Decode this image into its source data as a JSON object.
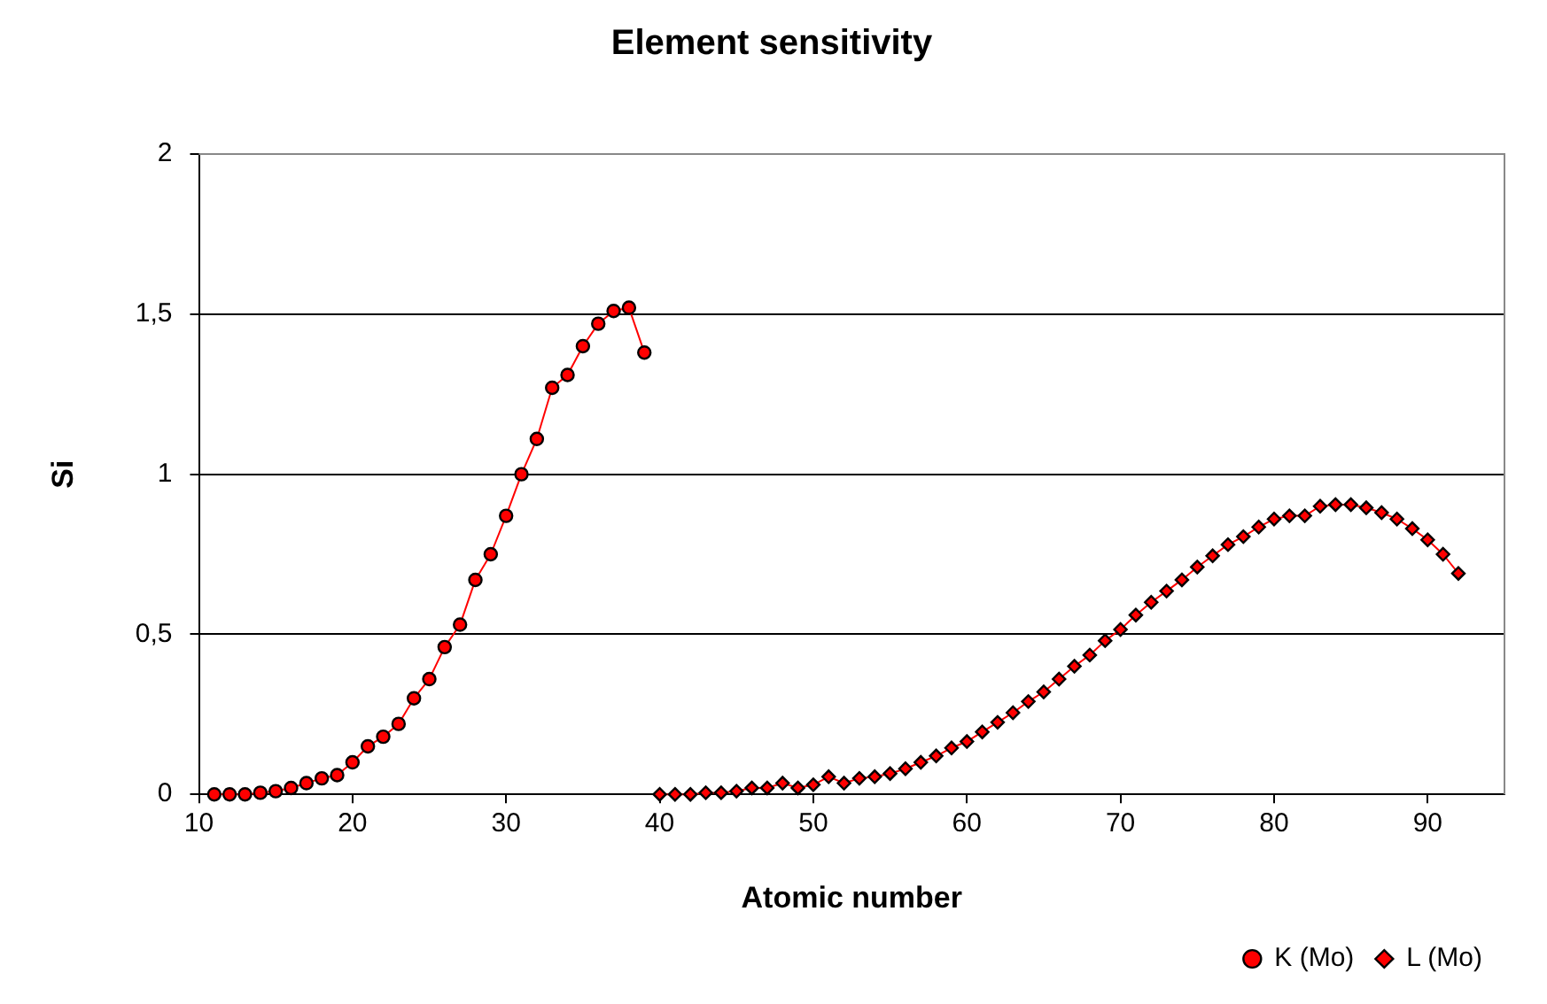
{
  "chart_data": {
    "type": "line",
    "title": "Element sensitivity",
    "xlabel": "Atomic number",
    "ylabel": "Si",
    "xlim": [
      10,
      95
    ],
    "xticks": [
      10,
      20,
      30,
      40,
      50,
      60,
      70,
      80,
      90
    ],
    "ylim": [
      0,
      2
    ],
    "yticks": [
      0,
      {
        "value": 0.5,
        "label": "0,5"
      },
      1,
      {
        "value": 1.5,
        "label": "1,5"
      },
      2
    ],
    "grid": "y",
    "legend": "bottom right",
    "line_style": "solid",
    "series": [
      {
        "name": "K (Mo)",
        "color": "#ff0000",
        "marker": "circle",
        "x": [
          11,
          12,
          13,
          14,
          15,
          16,
          17,
          18,
          19,
          20,
          21,
          22,
          23,
          24,
          25,
          26,
          27,
          28,
          29,
          30,
          31,
          32,
          33,
          34,
          35,
          36,
          37,
          38,
          39
        ],
        "values": [
          0,
          0,
          0,
          0.005,
          0.01,
          0.02,
          0.035,
          0.05,
          0.06,
          0.1,
          0.15,
          0.18,
          0.22,
          0.3,
          0.36,
          0.46,
          0.53,
          0.67,
          0.75,
          0.87,
          1.0,
          1.11,
          1.27,
          1.31,
          1.4,
          1.47,
          1.51,
          1.52,
          1.38
        ]
      },
      {
        "name": "L (Mo)",
        "color": "#ff0000",
        "marker": "diamond",
        "x": [
          40,
          41,
          42,
          43,
          44,
          45,
          46,
          47,
          48,
          49,
          50,
          51,
          52,
          53,
          54,
          55,
          56,
          57,
          58,
          59,
          60,
          61,
          62,
          63,
          64,
          65,
          66,
          67,
          68,
          69,
          70,
          71,
          72,
          73,
          74,
          75,
          76,
          77,
          78,
          79,
          80,
          81,
          82,
          83,
          84,
          85,
          86,
          87,
          88,
          89,
          90,
          91,
          92
        ],
        "values": [
          0,
          0,
          0,
          0.005,
          0.005,
          0.01,
          0.02,
          0.02,
          0.035,
          0.02,
          0.03,
          0.055,
          0.035,
          0.05,
          0.055,
          0.065,
          0.08,
          0.1,
          0.12,
          0.145,
          0.165,
          0.195,
          0.225,
          0.255,
          0.29,
          0.32,
          0.36,
          0.4,
          0.435,
          0.48,
          0.515,
          0.56,
          0.6,
          0.635,
          0.67,
          0.71,
          0.745,
          0.78,
          0.805,
          0.835,
          0.86,
          0.87,
          0.87,
          0.9,
          0.905,
          0.905,
          0.895,
          0.88,
          0.86,
          0.83,
          0.795,
          0.75,
          0.69
        ]
      }
    ]
  }
}
